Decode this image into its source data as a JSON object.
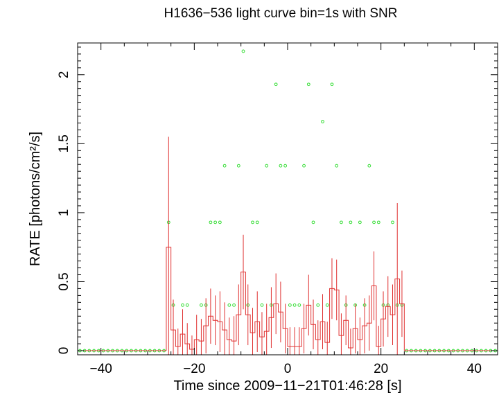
{
  "chart_data": {
    "type": "step-line-with-errorbars-and-scatter",
    "title": "H1636−536 light curve bin=1s with SNR",
    "xlabel": "Time since 2009−11−21T01:46:28 [s]",
    "ylabel": "RATE [photons/cm²/s]",
    "xlim": [
      -45,
      45
    ],
    "ylim": [
      -0.03,
      2.23
    ],
    "xticks": [
      -40,
      -20,
      0,
      20,
      40
    ],
    "xtick_labels": [
      "−40",
      "−20",
      "0",
      "20",
      "40"
    ],
    "yticks": [
      0,
      0.5,
      1,
      1.5,
      2
    ],
    "ytick_labels": [
      "0",
      "0.5",
      "1",
      "1.5",
      "2"
    ],
    "grid": false,
    "colors": {
      "rate": "#e03030",
      "snr": "#33dd33",
      "axes": "#000000"
    },
    "series": [
      {
        "type": "step",
        "bin_width": 1,
        "x_start": [
          -26,
          -25,
          -24,
          -23,
          -22,
          -21,
          -20,
          -19,
          -18,
          -17,
          -16,
          -15,
          -14,
          -13,
          -12,
          -11,
          -10,
          -9,
          -8,
          -7,
          -6,
          -5,
          -4,
          -3,
          -2,
          -1,
          0,
          1,
          2,
          3,
          4,
          5,
          6,
          7,
          8,
          9,
          10,
          11,
          12,
          13,
          14,
          15,
          16,
          17,
          18,
          19,
          20,
          21,
          22,
          23,
          24
        ],
        "rate": [
          0.75,
          0.15,
          0.03,
          0.12,
          0.05,
          0.01,
          0.08,
          0.07,
          0.18,
          0.25,
          0.22,
          0.21,
          0.15,
          0.08,
          0.07,
          0.26,
          0.57,
          0.26,
          0.13,
          0.21,
          0.1,
          0.14,
          0.24,
          0.34,
          0.28,
          0.16,
          0.03,
          0.03,
          0.03,
          0.16,
          0.33,
          0.19,
          0.08,
          0.21,
          0.06,
          0.45,
          0.44,
          0.11,
          0.22,
          0.02,
          0.16,
          0.08,
          0.18,
          0.2,
          0.47,
          0.03,
          0.23,
          0.32,
          0.26,
          0.52,
          0.34
        ],
        "err": [
          0.8,
          0.22,
          0.13,
          0.18,
          0.15,
          0.1,
          0.18,
          0.16,
          0.2,
          0.2,
          0.18,
          0.22,
          0.2,
          0.16,
          0.18,
          0.22,
          0.27,
          0.22,
          0.18,
          0.22,
          0.18,
          0.2,
          0.22,
          0.22,
          0.22,
          0.18,
          0.14,
          0.14,
          0.14,
          0.18,
          0.22,
          0.18,
          0.14,
          0.2,
          0.15,
          0.22,
          0.22,
          0.16,
          0.18,
          0.14,
          0.18,
          0.16,
          0.2,
          0.2,
          0.25,
          0.15,
          0.2,
          0.22,
          0.22,
          0.55,
          0.24
        ]
      },
      {
        "type": "scatter",
        "x": [
          -25.5,
          -24.5,
          -22.5,
          -21.5,
          -18.5,
          -17.5,
          -16.5,
          -15.5,
          -14.5,
          -13.5,
          -12.5,
          -11.5,
          -10.5,
          -9.5,
          -8.5,
          -7.5,
          -6.5,
          -5.5,
          -4.5,
          -3.5,
          -2.5,
          -1.5,
          -0.5,
          0.5,
          1.5,
          2.5,
          3.5,
          4.5,
          5.5,
          6.5,
          7.5,
          8.5,
          9.5,
          10.5,
          11.5,
          12.5,
          13.5,
          14.5,
          15.5,
          16.5,
          17.5,
          18.5,
          19.5,
          20.5,
          21.5,
          22.5,
          23.5,
          24.5
        ],
        "snr": [
          0.93,
          0.33,
          0.33,
          0.33,
          0.33,
          0.33,
          0.93,
          0.93,
          0.93,
          1.34,
          0.33,
          0.33,
          1.34,
          2.17,
          0.33,
          0.93,
          0.93,
          0.33,
          1.34,
          0.33,
          1.93,
          1.34,
          1.34,
          0.33,
          0.33,
          0.33,
          1.34,
          1.93,
          0.93,
          0.33,
          1.66,
          0.33,
          1.93,
          1.34,
          0.93,
          0.33,
          0.93,
          0.33,
          0.93,
          0.33,
          1.34,
          0.93,
          0.93,
          0.33,
          0.33,
          0.93,
          0.33,
          0.33
        ]
      }
    ]
  }
}
